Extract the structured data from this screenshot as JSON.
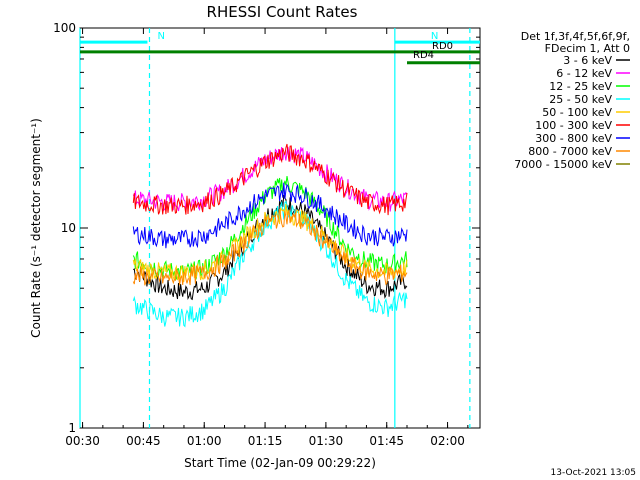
{
  "chart_data": {
    "type": "line",
    "title": "RHESSI Count Rates",
    "xlabel": "Start Time (02-Jan-09 00:29:22)",
    "ylabel": "Count Rate (s⁻¹ detector segment⁻¹)",
    "y_scale": "log",
    "ylim": [
      1,
      100
    ],
    "xlim": [
      "00:29:22",
      "02:08:00"
    ],
    "x_ticks": [
      "00:30",
      "00:45",
      "01:00",
      "01:15",
      "01:30",
      "01:45",
      "02:00"
    ],
    "y_ticks": [
      "1",
      "10",
      "100"
    ],
    "grid": false,
    "legend_placement": "right",
    "legend_header": [
      "Det 1f,3f,4f,5f,6f,9f,",
      "FDecim 1, Att 0"
    ],
    "series": [
      {
        "name": "3 - 6 keV",
        "color": "#000000",
        "x": [
          "00:42:30",
          "00:50:00",
          "00:55:00",
          "01:00:00",
          "01:05:00",
          "01:10:00",
          "01:15:00",
          "01:20:00",
          "01:25:00",
          "01:30:00",
          "01:35:00",
          "01:40:00",
          "01:45:00",
          "01:50:00"
        ],
        "y": [
          6.2,
          5.0,
          4.8,
          5.0,
          6.0,
          8.5,
          11.5,
          13.5,
          12.0,
          9.0,
          6.5,
          5.2,
          5.0,
          5.5
        ]
      },
      {
        "name": "6 - 12 keV",
        "color": "#ff00ff",
        "x": [
          "00:42:30",
          "00:50:00",
          "00:55:00",
          "01:00:00",
          "01:05:00",
          "01:10:00",
          "01:15:00",
          "01:20:00",
          "01:25:00",
          "01:30:00",
          "01:35:00",
          "01:40:00",
          "01:45:00",
          "01:50:00"
        ],
        "y": [
          14,
          13.5,
          13.5,
          14.0,
          15.5,
          18.5,
          22.0,
          24.5,
          22.5,
          19.0,
          16.0,
          14.0,
          13.5,
          14.0
        ]
      },
      {
        "name": "12 - 25 keV",
        "color": "#00ff00",
        "x": [
          "00:42:30",
          "00:50:00",
          "00:55:00",
          "01:00:00",
          "01:05:00",
          "01:10:00",
          "01:15:00",
          "01:20:00",
          "01:25:00",
          "01:30:00",
          "01:35:00",
          "01:40:00",
          "01:45:00",
          "01:50:00"
        ],
        "y": [
          7.0,
          6.2,
          6.0,
          6.3,
          7.5,
          10.5,
          14.5,
          17.0,
          15.0,
          11.5,
          8.0,
          6.8,
          6.5,
          7.0
        ]
      },
      {
        "name": "25 - 50 keV",
        "color": "#00ffff",
        "x": [
          "00:42:30",
          "00:50:00",
          "00:55:00",
          "01:00:00",
          "01:05:00",
          "01:10:00",
          "01:15:00",
          "01:20:00",
          "01:25:00",
          "01:30:00",
          "01:35:00",
          "01:40:00",
          "01:45:00",
          "01:50:00"
        ],
        "y": [
          4.2,
          3.6,
          3.6,
          3.9,
          5.0,
          7.5,
          10.5,
          12.5,
          11.0,
          8.0,
          5.5,
          4.3,
          4.0,
          4.5
        ]
      },
      {
        "name": "50 - 100 keV",
        "color": "#ffcc00",
        "x": [
          "00:42:30",
          "00:50:00",
          "00:55:00",
          "01:00:00",
          "01:05:00",
          "01:10:00",
          "01:15:00",
          "01:20:00",
          "01:25:00",
          "01:30:00",
          "01:35:00",
          "01:40:00",
          "01:45:00",
          "01:50:00"
        ],
        "y": [
          6.5,
          6.0,
          6.0,
          6.2,
          7.0,
          9.0,
          11.0,
          12.0,
          11.0,
          9.0,
          7.2,
          6.3,
          6.0,
          6.3
        ]
      },
      {
        "name": "100 - 300 keV",
        "color": "#ff0000",
        "x": [
          "00:42:30",
          "00:50:00",
          "00:55:00",
          "01:00:00",
          "01:05:00",
          "01:10:00",
          "01:15:00",
          "01:20:00",
          "01:25:00",
          "01:30:00",
          "01:35:00",
          "01:40:00",
          "01:45:00",
          "01:50:00"
        ],
        "y": [
          13.5,
          13.0,
          13.0,
          13.5,
          15.0,
          18.0,
          21.5,
          24.0,
          22.0,
          18.5,
          15.5,
          13.5,
          13.0,
          13.5
        ]
      },
      {
        "name": "300 - 800 keV",
        "color": "#0000ff",
        "x": [
          "00:42:30",
          "00:50:00",
          "00:55:00",
          "01:00:00",
          "01:05:00",
          "01:10:00",
          "01:15:00",
          "01:20:00",
          "01:25:00",
          "01:30:00",
          "01:35:00",
          "01:40:00",
          "01:45:00",
          "01:50:00"
        ],
        "y": [
          9.5,
          8.8,
          8.8,
          9.2,
          10.5,
          12.5,
          14.5,
          15.5,
          14.5,
          12.5,
          10.5,
          9.2,
          9.0,
          9.3
        ]
      },
      {
        "name": "800 - 7000 keV",
        "color": "#ff8800",
        "x": [
          "00:42:30",
          "00:50:00",
          "00:55:00",
          "01:00:00",
          "01:05:00",
          "01:10:00",
          "01:15:00",
          "01:20:00",
          "01:25:00",
          "01:30:00",
          "01:35:00",
          "01:40:00",
          "01:45:00",
          "01:50:00"
        ],
        "y": [
          5.8,
          5.6,
          5.7,
          6.0,
          6.8,
          8.5,
          10.5,
          11.5,
          10.5,
          8.5,
          6.8,
          6.0,
          5.8,
          6.0
        ]
      },
      {
        "name": "7000 - 15000 keV",
        "color": "#808000",
        "x": [],
        "y": []
      }
    ],
    "attenuator_bars": [
      {
        "label": "N",
        "color": "#00ffff",
        "start": "00:29:22",
        "end": "00:46:00",
        "level": 85
      },
      {
        "label": "N",
        "color": "#00ffff",
        "start": "01:47:00",
        "end": "02:08:00",
        "level": 85
      },
      {
        "label": "RD0",
        "color": "#008000",
        "start": "00:29:22",
        "end": "02:08:00",
        "level": 76
      },
      {
        "label": "RD4",
        "color": "#008000",
        "start": "01:50:00",
        "end": "02:08:00",
        "level": 67
      }
    ],
    "vertical_markers": [
      {
        "time": "00:29:22",
        "style": "solid",
        "color": "#00ffff"
      },
      {
        "time": "00:46:30",
        "style": "dashed",
        "color": "#00ffff"
      },
      {
        "time": "01:47:00",
        "style": "solid",
        "color": "#00ffff"
      },
      {
        "time": "02:05:30",
        "style": "dashed",
        "color": "#00ffff"
      }
    ],
    "footer_date": "13-Oct-2021 13:05"
  }
}
